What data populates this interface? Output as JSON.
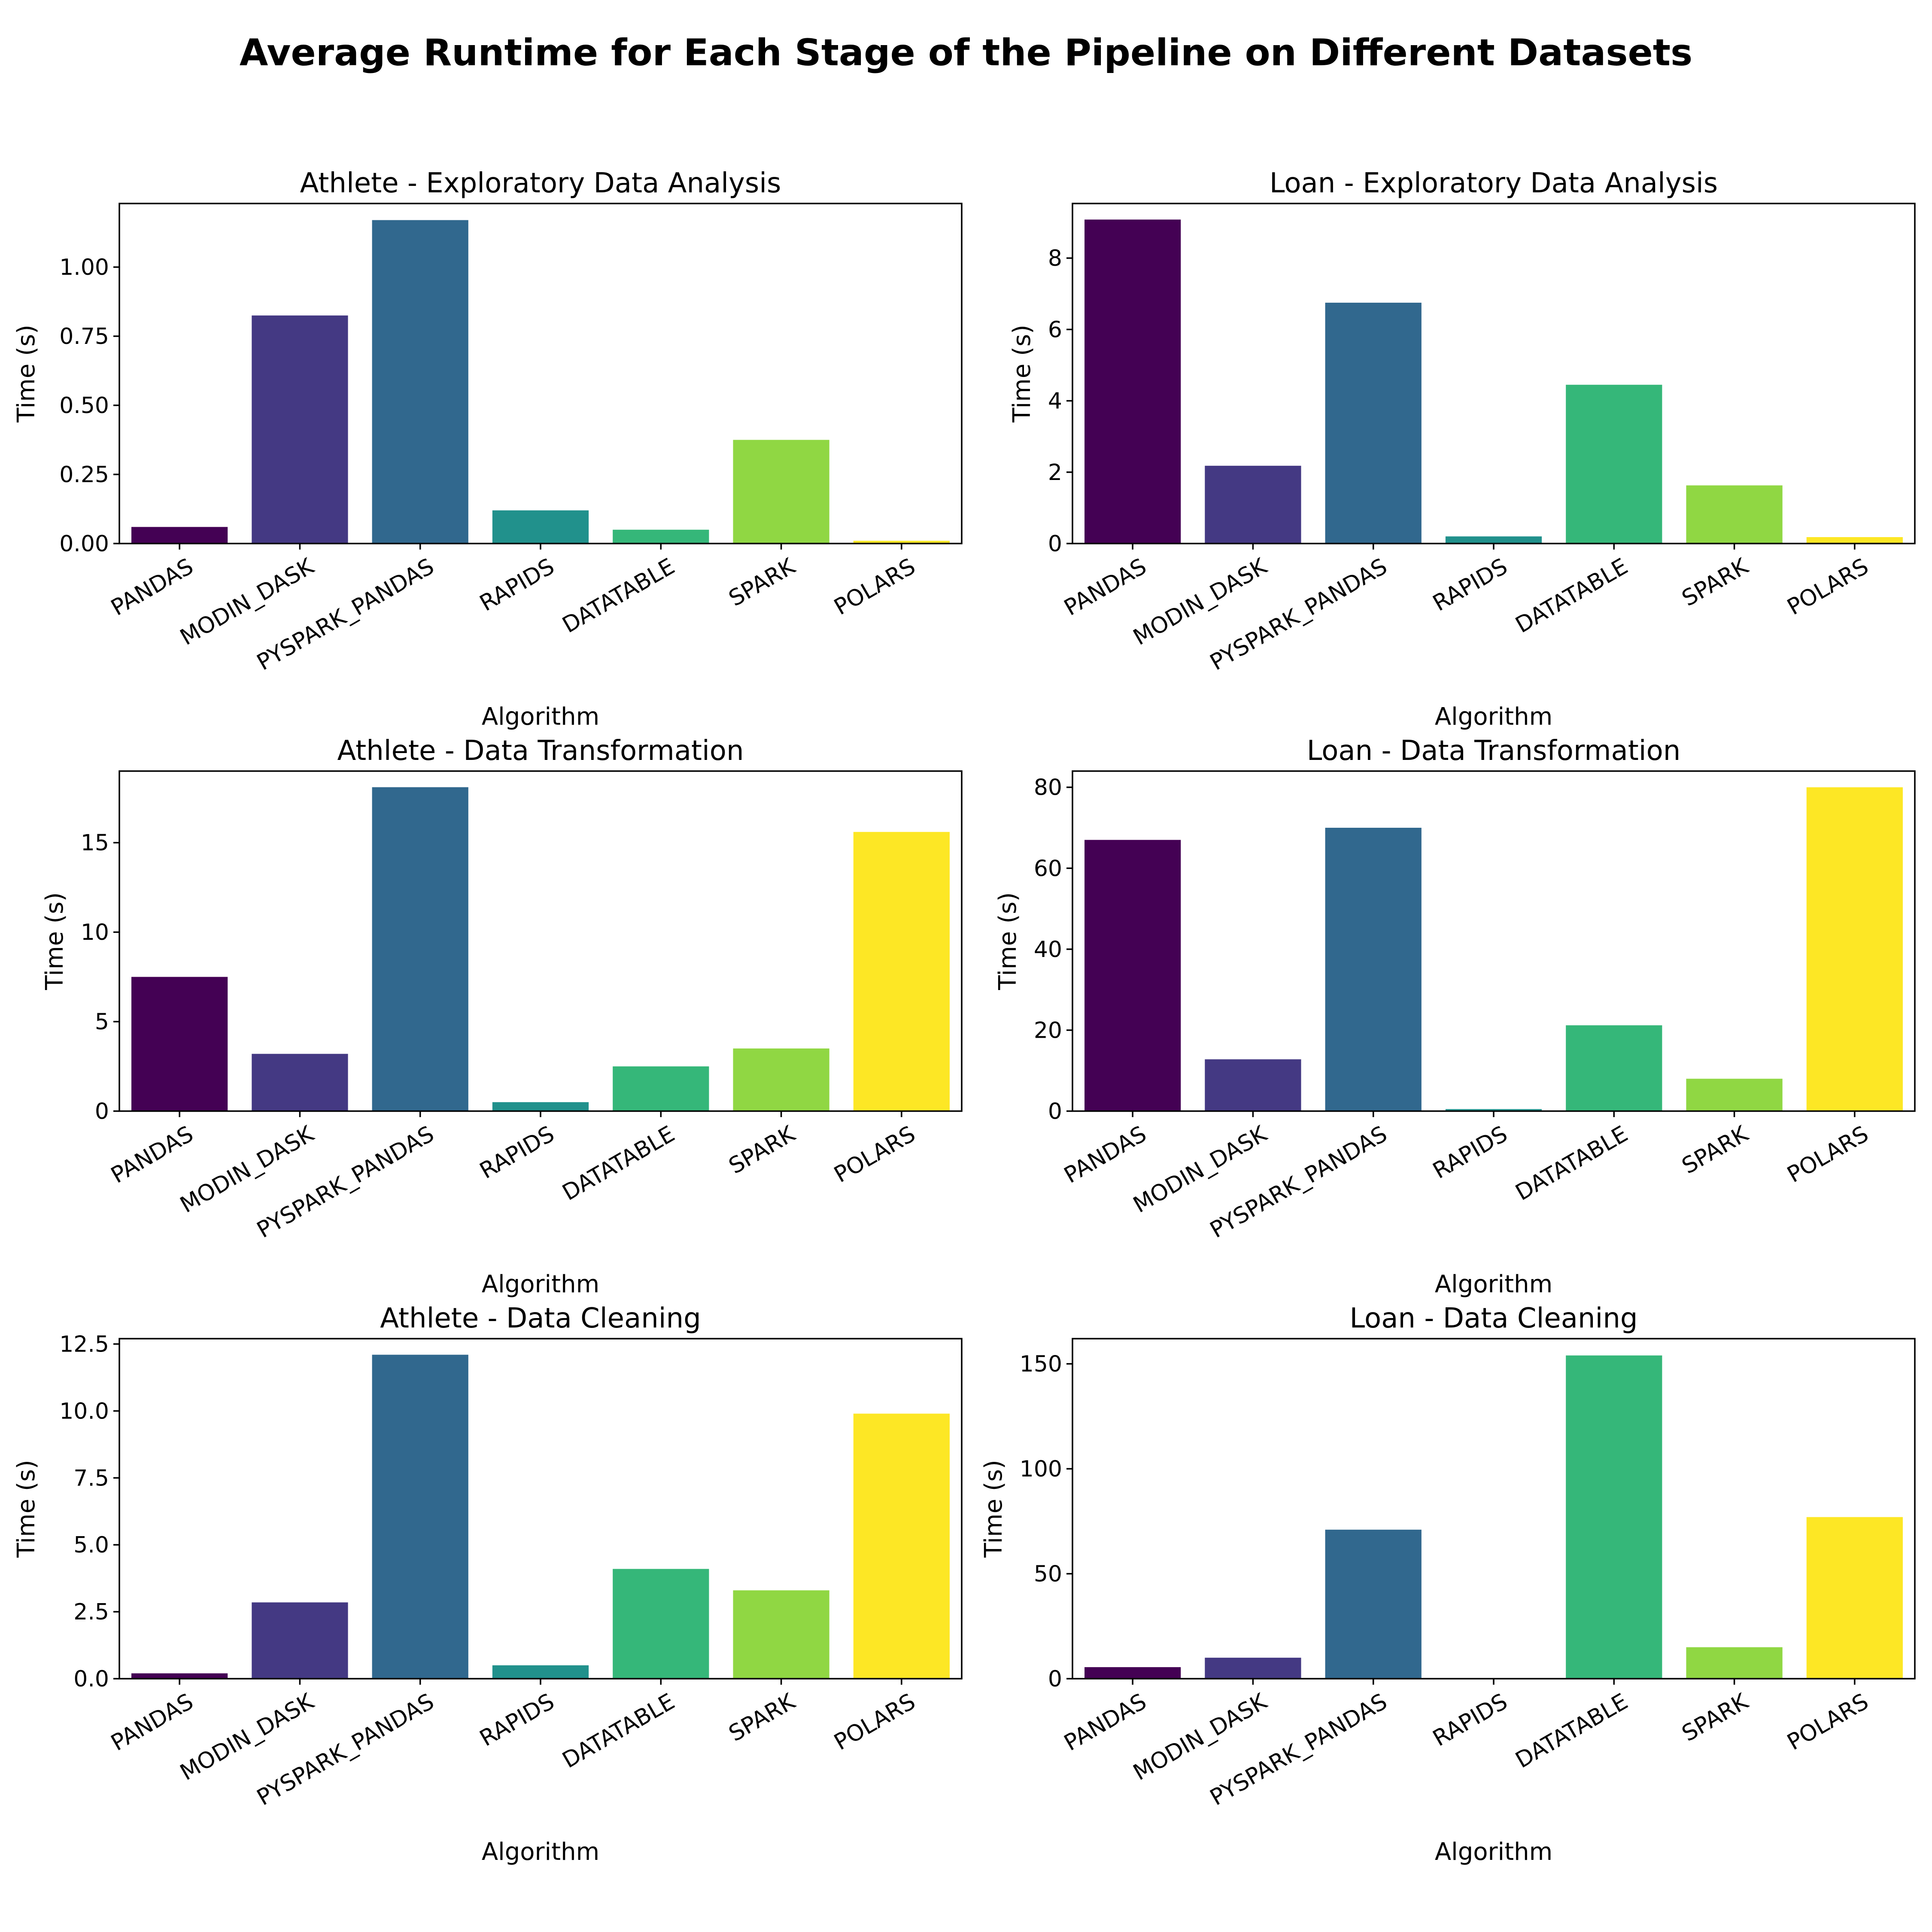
{
  "title": "Average Runtime for Each Stage of the Pipeline on Different Datasets",
  "chart_data": [
    {
      "type": "bar",
      "title": "Athlete - Exploratory Data Analysis",
      "xlabel": "Algorithm",
      "ylabel": "Time (s)",
      "categories": [
        "PANDAS",
        "MODIN_DASK",
        "PYSPARK_PANDAS",
        "RAPIDS",
        "DATATABLE",
        "SPARK",
        "POLARS"
      ],
      "values": [
        0.06,
        0.825,
        1.17,
        0.12,
        0.05,
        0.375,
        0.01
      ],
      "ylim": [
        0,
        1.23
      ],
      "yticks": [
        0,
        0.25,
        0.5,
        0.75,
        1.0
      ],
      "ytick_labels": [
        "0.00",
        "0.25",
        "0.50",
        "0.75",
        "1.00"
      ]
    },
    {
      "type": "bar",
      "title": "Loan - Exploratory Data Analysis",
      "xlabel": "Algorithm",
      "ylabel": "Time (s)",
      "categories": [
        "PANDAS",
        "MODIN_DASK",
        "PYSPARK_PANDAS",
        "RAPIDS",
        "DATATABLE",
        "SPARK",
        "POLARS"
      ],
      "values": [
        9.08,
        2.18,
        6.75,
        0.2,
        4.45,
        1.63,
        0.18
      ],
      "ylim": [
        0,
        9.53
      ],
      "yticks": [
        0,
        2,
        4,
        6,
        8
      ],
      "ytick_labels": [
        "0",
        "2",
        "4",
        "6",
        "8"
      ]
    },
    {
      "type": "bar",
      "title": "Athlete - Data Transformation",
      "xlabel": "Algorithm",
      "ylabel": "Time (s)",
      "categories": [
        "PANDAS",
        "MODIN_DASK",
        "PYSPARK_PANDAS",
        "RAPIDS",
        "DATATABLE",
        "SPARK",
        "POLARS"
      ],
      "values": [
        7.5,
        3.2,
        18.1,
        0.5,
        2.5,
        3.5,
        15.6
      ],
      "ylim": [
        0,
        19.0
      ],
      "yticks": [
        0,
        5,
        10,
        15
      ],
      "ytick_labels": [
        "0",
        "5",
        "10",
        "15"
      ]
    },
    {
      "type": "bar",
      "title": "Loan - Data Transformation",
      "xlabel": "Algorithm",
      "ylabel": "Time (s)",
      "categories": [
        "PANDAS",
        "MODIN_DASK",
        "PYSPARK_PANDAS",
        "RAPIDS",
        "DATATABLE",
        "SPARK",
        "POLARS"
      ],
      "values": [
        67,
        12.8,
        70,
        0.5,
        21.2,
        8,
        80
      ],
      "ylim": [
        0,
        84
      ],
      "yticks": [
        0,
        20,
        40,
        60,
        80
      ],
      "ytick_labels": [
        "0",
        "20",
        "40",
        "60",
        "80"
      ]
    },
    {
      "type": "bar",
      "title": "Athlete - Data Cleaning",
      "xlabel": "Algorithm",
      "ylabel": "Time (s)",
      "categories": [
        "PANDAS",
        "MODIN_DASK",
        "PYSPARK_PANDAS",
        "RAPIDS",
        "DATATABLE",
        "SPARK",
        "POLARS"
      ],
      "values": [
        0.2,
        2.85,
        12.1,
        0.5,
        4.1,
        3.3,
        9.9
      ],
      "ylim": [
        0,
        12.7
      ],
      "yticks": [
        0,
        2.5,
        5.0,
        7.5,
        10.0,
        12.5
      ],
      "ytick_labels": [
        "0.0",
        "2.5",
        "5.0",
        "7.5",
        "10.0",
        "12.5"
      ]
    },
    {
      "type": "bar",
      "title": "Loan - Data Cleaning",
      "xlabel": "Algorithm",
      "ylabel": "Time (s)",
      "categories": [
        "PANDAS",
        "MODIN_DASK",
        "PYSPARK_PANDAS",
        "RAPIDS",
        "DATATABLE",
        "SPARK",
        "POLARS"
      ],
      "values": [
        5.5,
        10,
        71,
        0.2,
        154,
        15,
        77
      ],
      "ylim": [
        0,
        162
      ],
      "yticks": [
        0,
        50,
        100,
        150
      ],
      "ytick_labels": [
        "0",
        "50",
        "100",
        "150"
      ]
    }
  ],
  "colors": [
    "#440154",
    "#443983",
    "#31688e",
    "#21918c",
    "#35b779",
    "#90d743",
    "#fde725"
  ]
}
